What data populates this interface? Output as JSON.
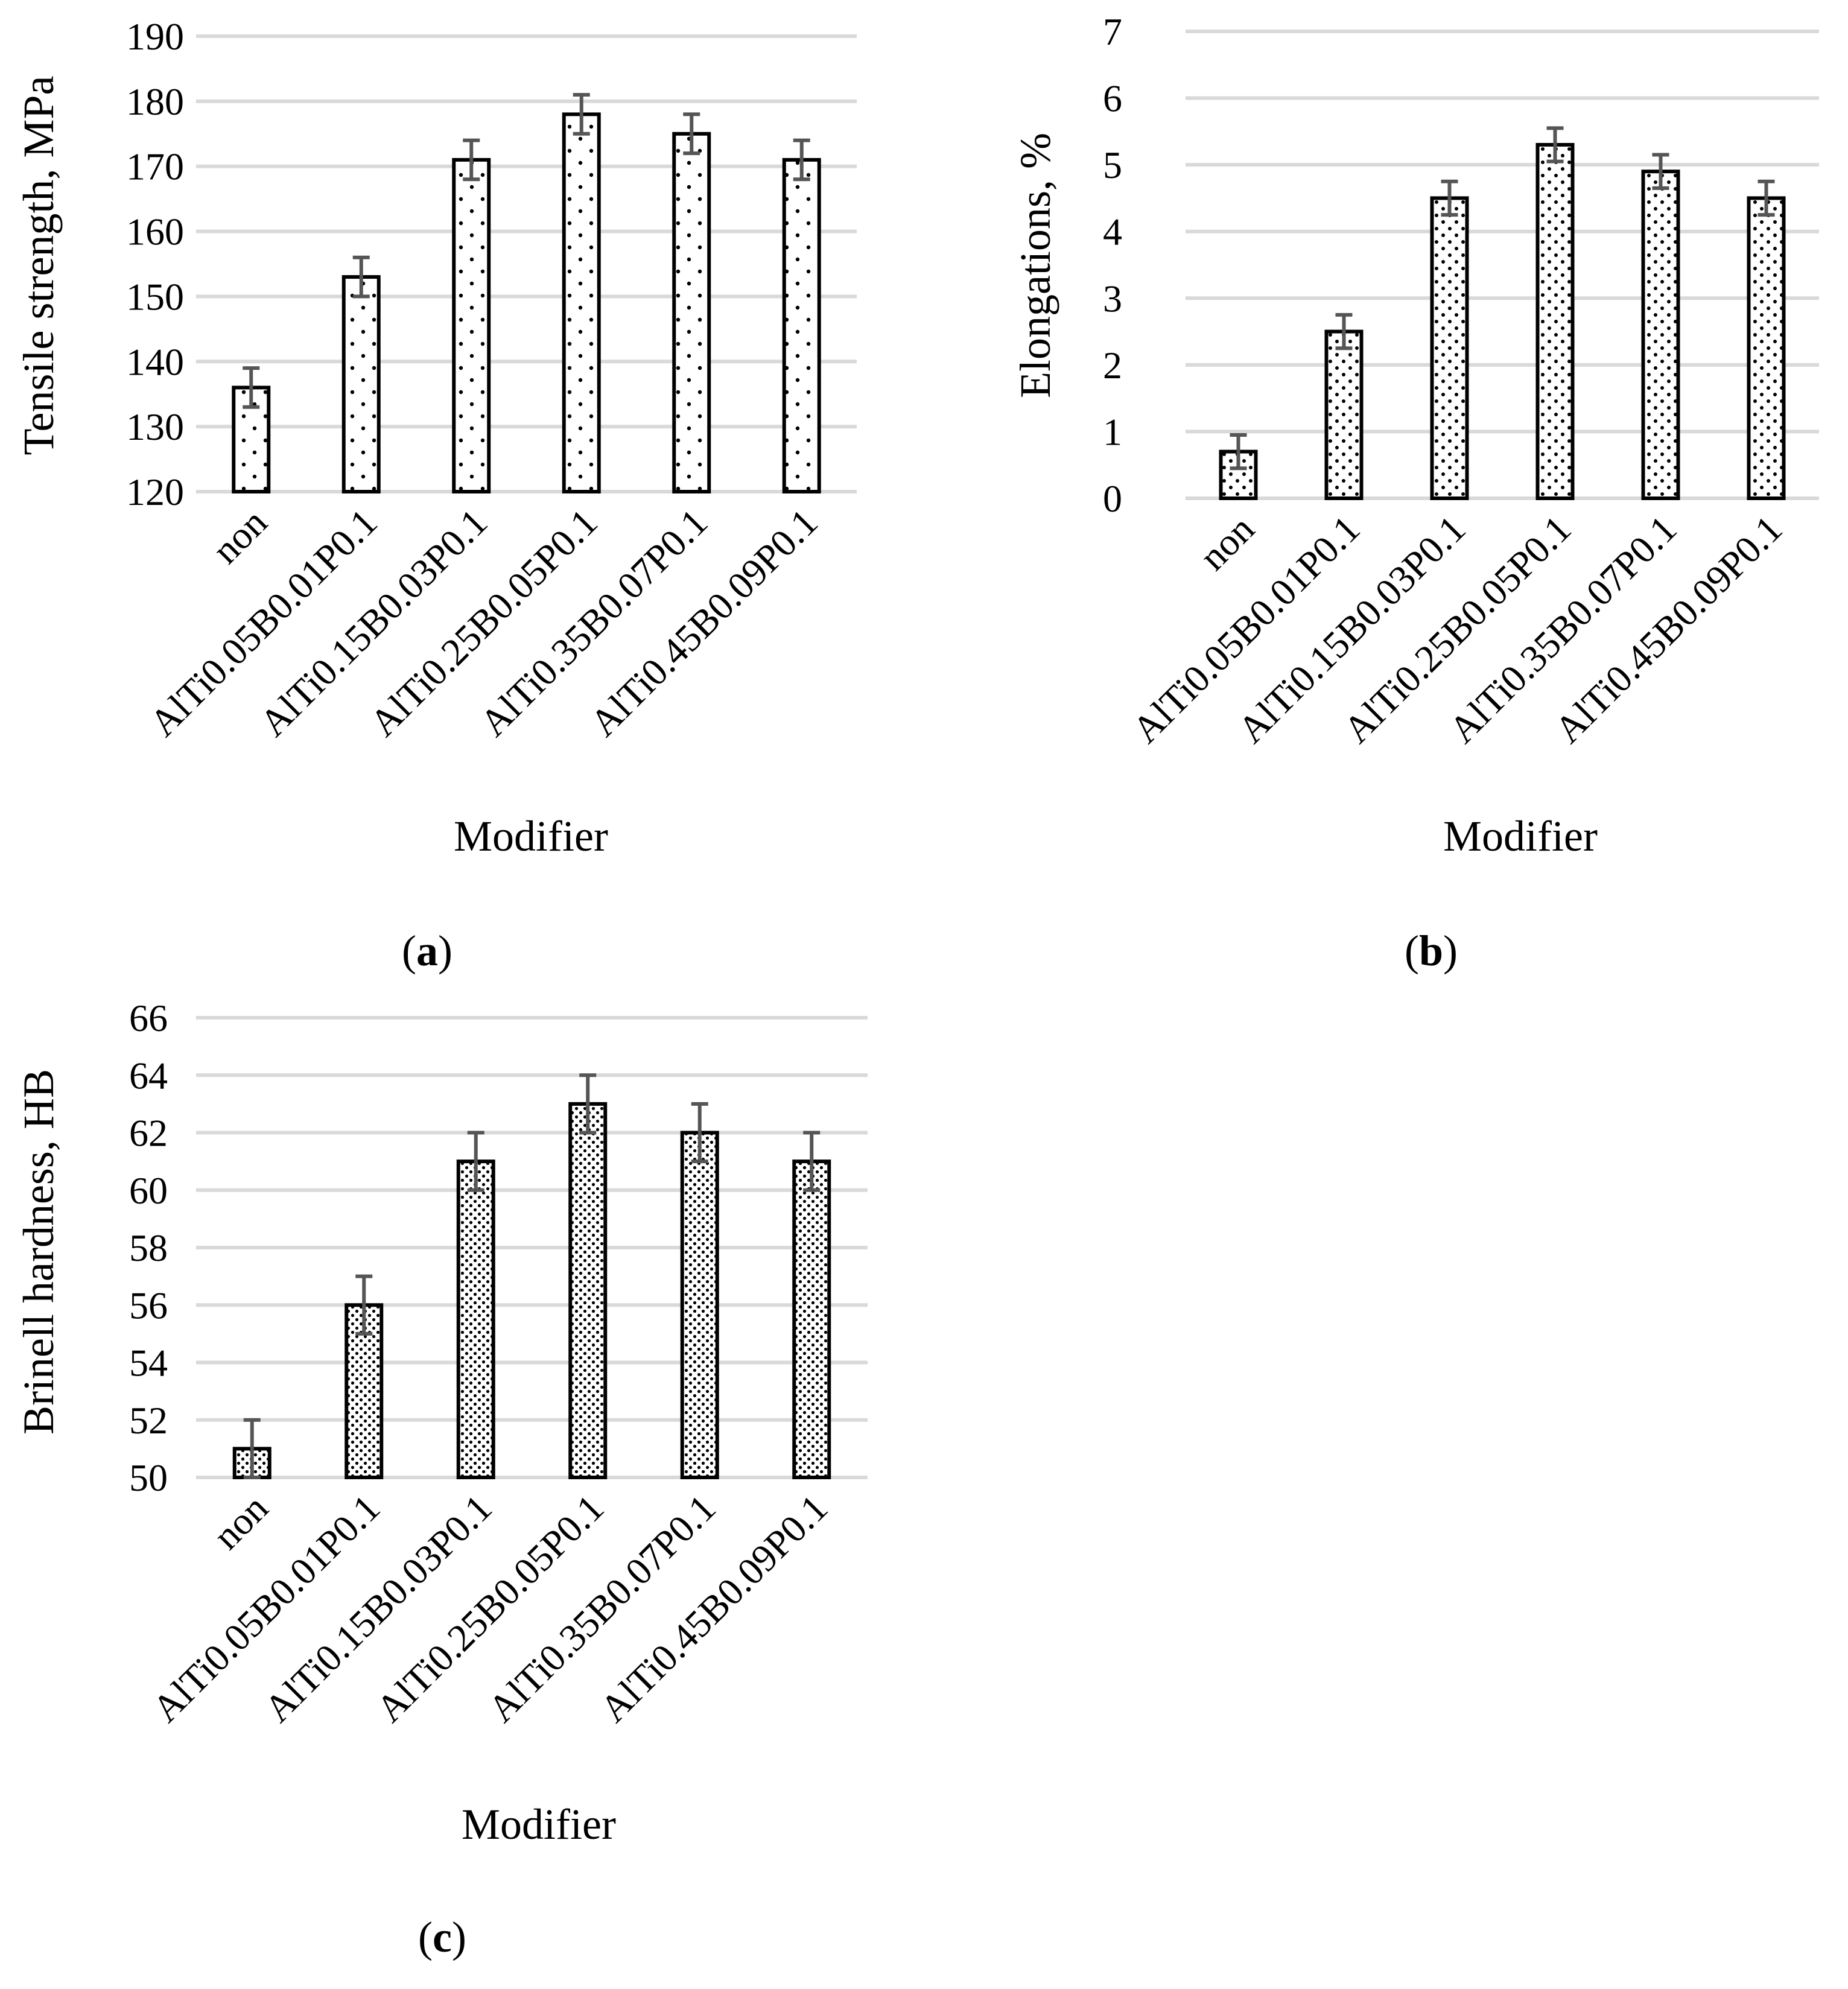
{
  "chart_data": [
    {
      "id": "a",
      "type": "bar",
      "caption_letter": "a",
      "xlabel": "Modifier",
      "ylabel": "Tensile strength, MPa",
      "ylim": [
        120,
        190
      ],
      "ytick_step": 10,
      "categories": [
        "non",
        "AlTi0.05B0.01P0.1",
        "AlTi0.15B0.03P0.1",
        "AlTi0.25B0.05P0.1",
        "AlTi0.35B0.07P0.1",
        "AlTi0.45B0.09P0.1"
      ],
      "values": [
        136,
        153,
        171,
        178,
        175,
        171
      ],
      "errors": [
        3,
        3,
        3,
        3,
        3,
        3
      ],
      "pattern": "sparse-dots"
    },
    {
      "id": "b",
      "type": "bar",
      "caption_letter": "b",
      "xlabel": "Modifier",
      "ylabel": "Elongations, %",
      "ylim": [
        0,
        7
      ],
      "ytick_step": 1,
      "categories": [
        "non",
        "AlTi0.05B0.01P0.1",
        "AlTi0.15B0.03P0.1",
        "AlTi0.25B0.05P0.1",
        "AlTi0.35B0.07P0.1",
        "AlTi0.45B0.09P0.1"
      ],
      "values": [
        0.7,
        2.5,
        4.5,
        5.3,
        4.9,
        4.5
      ],
      "errors": [
        0.25,
        0.25,
        0.25,
        0.25,
        0.25,
        0.25
      ],
      "pattern": "medium-dots"
    },
    {
      "id": "c",
      "type": "bar",
      "caption_letter": "c",
      "xlabel": "Modifier",
      "ylabel": "Brinell hardness, HB",
      "ylim": [
        50,
        66
      ],
      "ytick_step": 2,
      "categories": [
        "non",
        "AlTi0.05B0.01P0.1",
        "AlTi0.15B0.03P0.1",
        "AlTi0.25B0.05P0.1",
        "AlTi0.35B0.07P0.1",
        "AlTi0.45B0.09P0.1"
      ],
      "values": [
        51,
        56,
        61,
        63,
        62,
        61
      ],
      "errors": [
        1,
        1,
        1,
        1,
        1,
        1
      ],
      "pattern": "dense-dots"
    }
  ]
}
